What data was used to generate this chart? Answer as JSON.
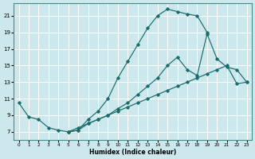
{
  "bg_color": "#cce8ed",
  "grid_color": "#ffffff",
  "line_color": "#1a6b6b",
  "xlabel": "Humidex (Indice chaleur)",
  "curve1_x": [
    0,
    1,
    2,
    3,
    4,
    5,
    6,
    7,
    8,
    9,
    10,
    11,
    12,
    13,
    14,
    15,
    16,
    17,
    18,
    19
  ],
  "curve1_y": [
    10.5,
    8.8,
    8.5,
    7.5,
    7.2,
    7.0,
    7.2,
    8.5,
    9.5,
    11.0,
    13.5,
    15.5,
    17.5,
    19.5,
    21.0,
    21.8,
    21.5,
    21.2,
    21.0,
    19.0
  ],
  "curve2_x": [
    5,
    6,
    7,
    8,
    9,
    10,
    11,
    12,
    13,
    14,
    15,
    16,
    17,
    18,
    19,
    20,
    21,
    22,
    23
  ],
  "curve2_y": [
    7.0,
    7.5,
    8.0,
    8.5,
    9.0,
    9.5,
    10.0,
    10.5,
    11.0,
    11.5,
    12.0,
    12.5,
    13.0,
    13.5,
    14.0,
    14.5,
    15.0,
    12.8,
    13.0
  ],
  "curve3_x": [
    5,
    6,
    7,
    8,
    9,
    10,
    11,
    12,
    13,
    14,
    15,
    16,
    17,
    18,
    19,
    20,
    21,
    22,
    23
  ],
  "curve3_y": [
    7.0,
    7.2,
    8.0,
    8.5,
    9.0,
    9.8,
    10.5,
    11.5,
    12.5,
    13.5,
    15.0,
    16.0,
    14.5,
    13.8,
    18.8,
    15.8,
    14.8,
    14.5,
    13.0
  ],
  "xlim": [
    -0.5,
    23.5
  ],
  "ylim": [
    6.0,
    22.5
  ],
  "yticks": [
    7,
    9,
    11,
    13,
    15,
    17,
    19,
    21
  ],
  "xticks": [
    0,
    1,
    2,
    3,
    4,
    5,
    6,
    7,
    8,
    9,
    10,
    11,
    12,
    13,
    14,
    15,
    16,
    17,
    18,
    19,
    20,
    21,
    22,
    23
  ]
}
